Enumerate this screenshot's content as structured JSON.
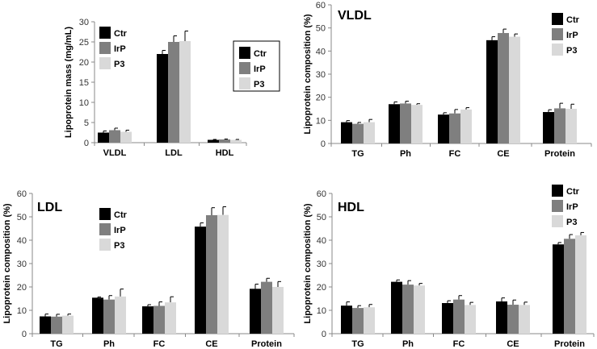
{
  "colors": {
    "Ctr": "#000000",
    "IrP": "#7f7f7f",
    "P3": "#d9d9d9"
  },
  "chart_data": [
    {
      "type": "bar",
      "title": "",
      "xlabel": "",
      "ylabel": "Lipoprotein mass (mg/mL)",
      "ylim": [
        0,
        30
      ],
      "yticks": [
        0,
        5,
        10,
        15,
        20,
        25,
        30
      ],
      "categories": [
        "VLDL",
        "LDL",
        "HDL"
      ],
      "legend": [
        "Ctr",
        "IrP",
        "P3"
      ],
      "legend_placement": "top-left and right (boxed)",
      "series": [
        {
          "name": "Ctr",
          "values": [
            2.5,
            22.0,
            0.7
          ],
          "errors": [
            0.4,
            0.9,
            0.1
          ]
        },
        {
          "name": "IrP",
          "values": [
            3.1,
            25.0,
            0.8
          ],
          "errors": [
            0.5,
            1.5,
            0.1
          ]
        },
        {
          "name": "P3",
          "values": [
            2.7,
            25.2,
            0.7
          ],
          "errors": [
            0.4,
            2.5,
            0.1
          ]
        }
      ]
    },
    {
      "type": "bar",
      "title": "VLDL",
      "xlabel": "",
      "ylabel": "Lipoprotein composition (%)",
      "ylim": [
        0,
        60
      ],
      "yticks": [
        0,
        10,
        20,
        30,
        40,
        50,
        60
      ],
      "categories": [
        "TG",
        "Ph",
        "FC",
        "CE",
        "Protein"
      ],
      "legend": [
        "Ctr",
        "IrP",
        "P3"
      ],
      "legend_placement": "top-right",
      "series": [
        {
          "name": "Ctr",
          "values": [
            9.2,
            17.0,
            12.5,
            44.7,
            13.6
          ],
          "errors": [
            0.7,
            1.0,
            0.8,
            1.5,
            1.0
          ]
        },
        {
          "name": "IrP",
          "values": [
            8.5,
            17.3,
            13.0,
            47.8,
            15.2
          ],
          "errors": [
            0.6,
            1.0,
            1.7,
            1.7,
            2.2
          ]
        },
        {
          "name": "P3",
          "values": [
            9.2,
            16.7,
            14.7,
            46.2,
            15.0
          ],
          "errors": [
            1.2,
            0.5,
            0.8,
            1.2,
            2.0
          ]
        }
      ]
    },
    {
      "type": "bar",
      "title": "LDL",
      "xlabel": "",
      "ylabel": "Lipoprotein composition (%)",
      "ylim": [
        0,
        60
      ],
      "yticks": [
        0,
        10,
        20,
        30,
        40,
        50,
        60
      ],
      "categories": [
        "TG",
        "Ph",
        "FC",
        "CE",
        "Protein"
      ],
      "legend": [
        "Ctr",
        "IrP",
        "P3"
      ],
      "legend_placement": "top-center",
      "series": [
        {
          "name": "Ctr",
          "values": [
            7.4,
            15.4,
            11.7,
            45.8,
            19.2
          ],
          "errors": [
            1.0,
            0.3,
            0.7,
            1.6,
            2.0
          ]
        },
        {
          "name": "IrP",
          "values": [
            7.3,
            14.6,
            11.9,
            50.7,
            22.2
          ],
          "errors": [
            1.0,
            1.7,
            1.7,
            3.2,
            1.5
          ]
        },
        {
          "name": "P3",
          "values": [
            7.7,
            15.9,
            13.4,
            50.8,
            20.0
          ],
          "errors": [
            0.7,
            3.2,
            2.4,
            3.5,
            2.3
          ]
        }
      ]
    },
    {
      "type": "bar",
      "title": "HDL",
      "xlabel": "",
      "ylabel": "Lipoprotein composition (%)",
      "ylim": [
        0,
        60
      ],
      "yticks": [
        0,
        10,
        20,
        30,
        40,
        50,
        60
      ],
      "categories": [
        "TG",
        "Ph",
        "FC",
        "CE",
        "Protein"
      ],
      "legend": [
        "Ctr",
        "IrP",
        "P3"
      ],
      "legend_placement": "top-right",
      "series": [
        {
          "name": "Ctr",
          "values": [
            12.0,
            22.2,
            13.1,
            13.8,
            38.2
          ],
          "errors": [
            1.6,
            0.8,
            1.0,
            1.5,
            0.8
          ]
        },
        {
          "name": "IrP",
          "values": [
            11.0,
            21.0,
            14.6,
            12.4,
            40.6
          ],
          "errors": [
            1.0,
            1.7,
            1.7,
            2.0,
            1.8
          ]
        },
        {
          "name": "P3",
          "values": [
            11.3,
            20.6,
            12.3,
            12.3,
            42.1
          ],
          "errors": [
            1.2,
            0.9,
            1.1,
            1.2,
            1.2
          ]
        }
      ]
    }
  ]
}
